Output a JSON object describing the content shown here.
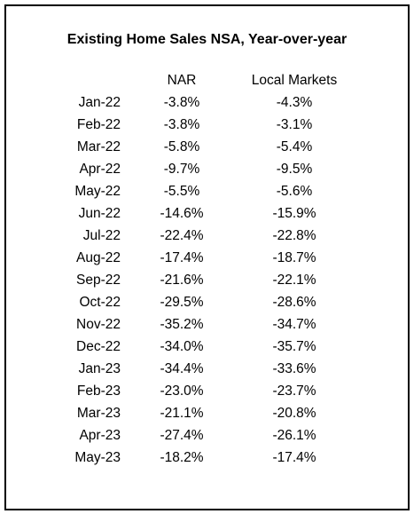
{
  "table": {
    "title": "Existing Home Sales NSA, Year-over-year",
    "header": [
      "NAR",
      "Local Markets"
    ],
    "rows": [
      [
        "Jan-22",
        "-3.8%",
        "-4.3%"
      ],
      [
        "Feb-22",
        "-3.8%",
        "-3.1%"
      ],
      [
        "Mar-22",
        "-5.8%",
        "-5.4%"
      ],
      [
        "Apr-22",
        "-9.7%",
        "-9.5%"
      ],
      [
        "May-22",
        "-5.5%",
        "-5.6%"
      ],
      [
        "Jun-22",
        "-14.6%",
        "-15.9%"
      ],
      [
        "Jul-22",
        "-22.4%",
        "-22.8%"
      ],
      [
        "Aug-22",
        "-17.4%",
        "-18.7%"
      ],
      [
        "Sep-22",
        "-21.6%",
        "-22.1%"
      ],
      [
        "Oct-22",
        "-29.5%",
        "-28.6%"
      ],
      [
        "Nov-22",
        "-35.2%",
        "-34.7%"
      ],
      [
        "Dec-22",
        "-34.0%",
        "-35.7%"
      ],
      [
        "Jan-23",
        "-34.4%",
        "-33.6%"
      ],
      [
        "Feb-23",
        "-23.0%",
        "-23.7%"
      ],
      [
        "Mar-23",
        "-21.1%",
        "-20.8%"
      ],
      [
        "Apr-23",
        "-27.4%",
        "-26.1%"
      ],
      [
        "May-23",
        "-18.2%",
        "-17.4%"
      ]
    ]
  }
}
